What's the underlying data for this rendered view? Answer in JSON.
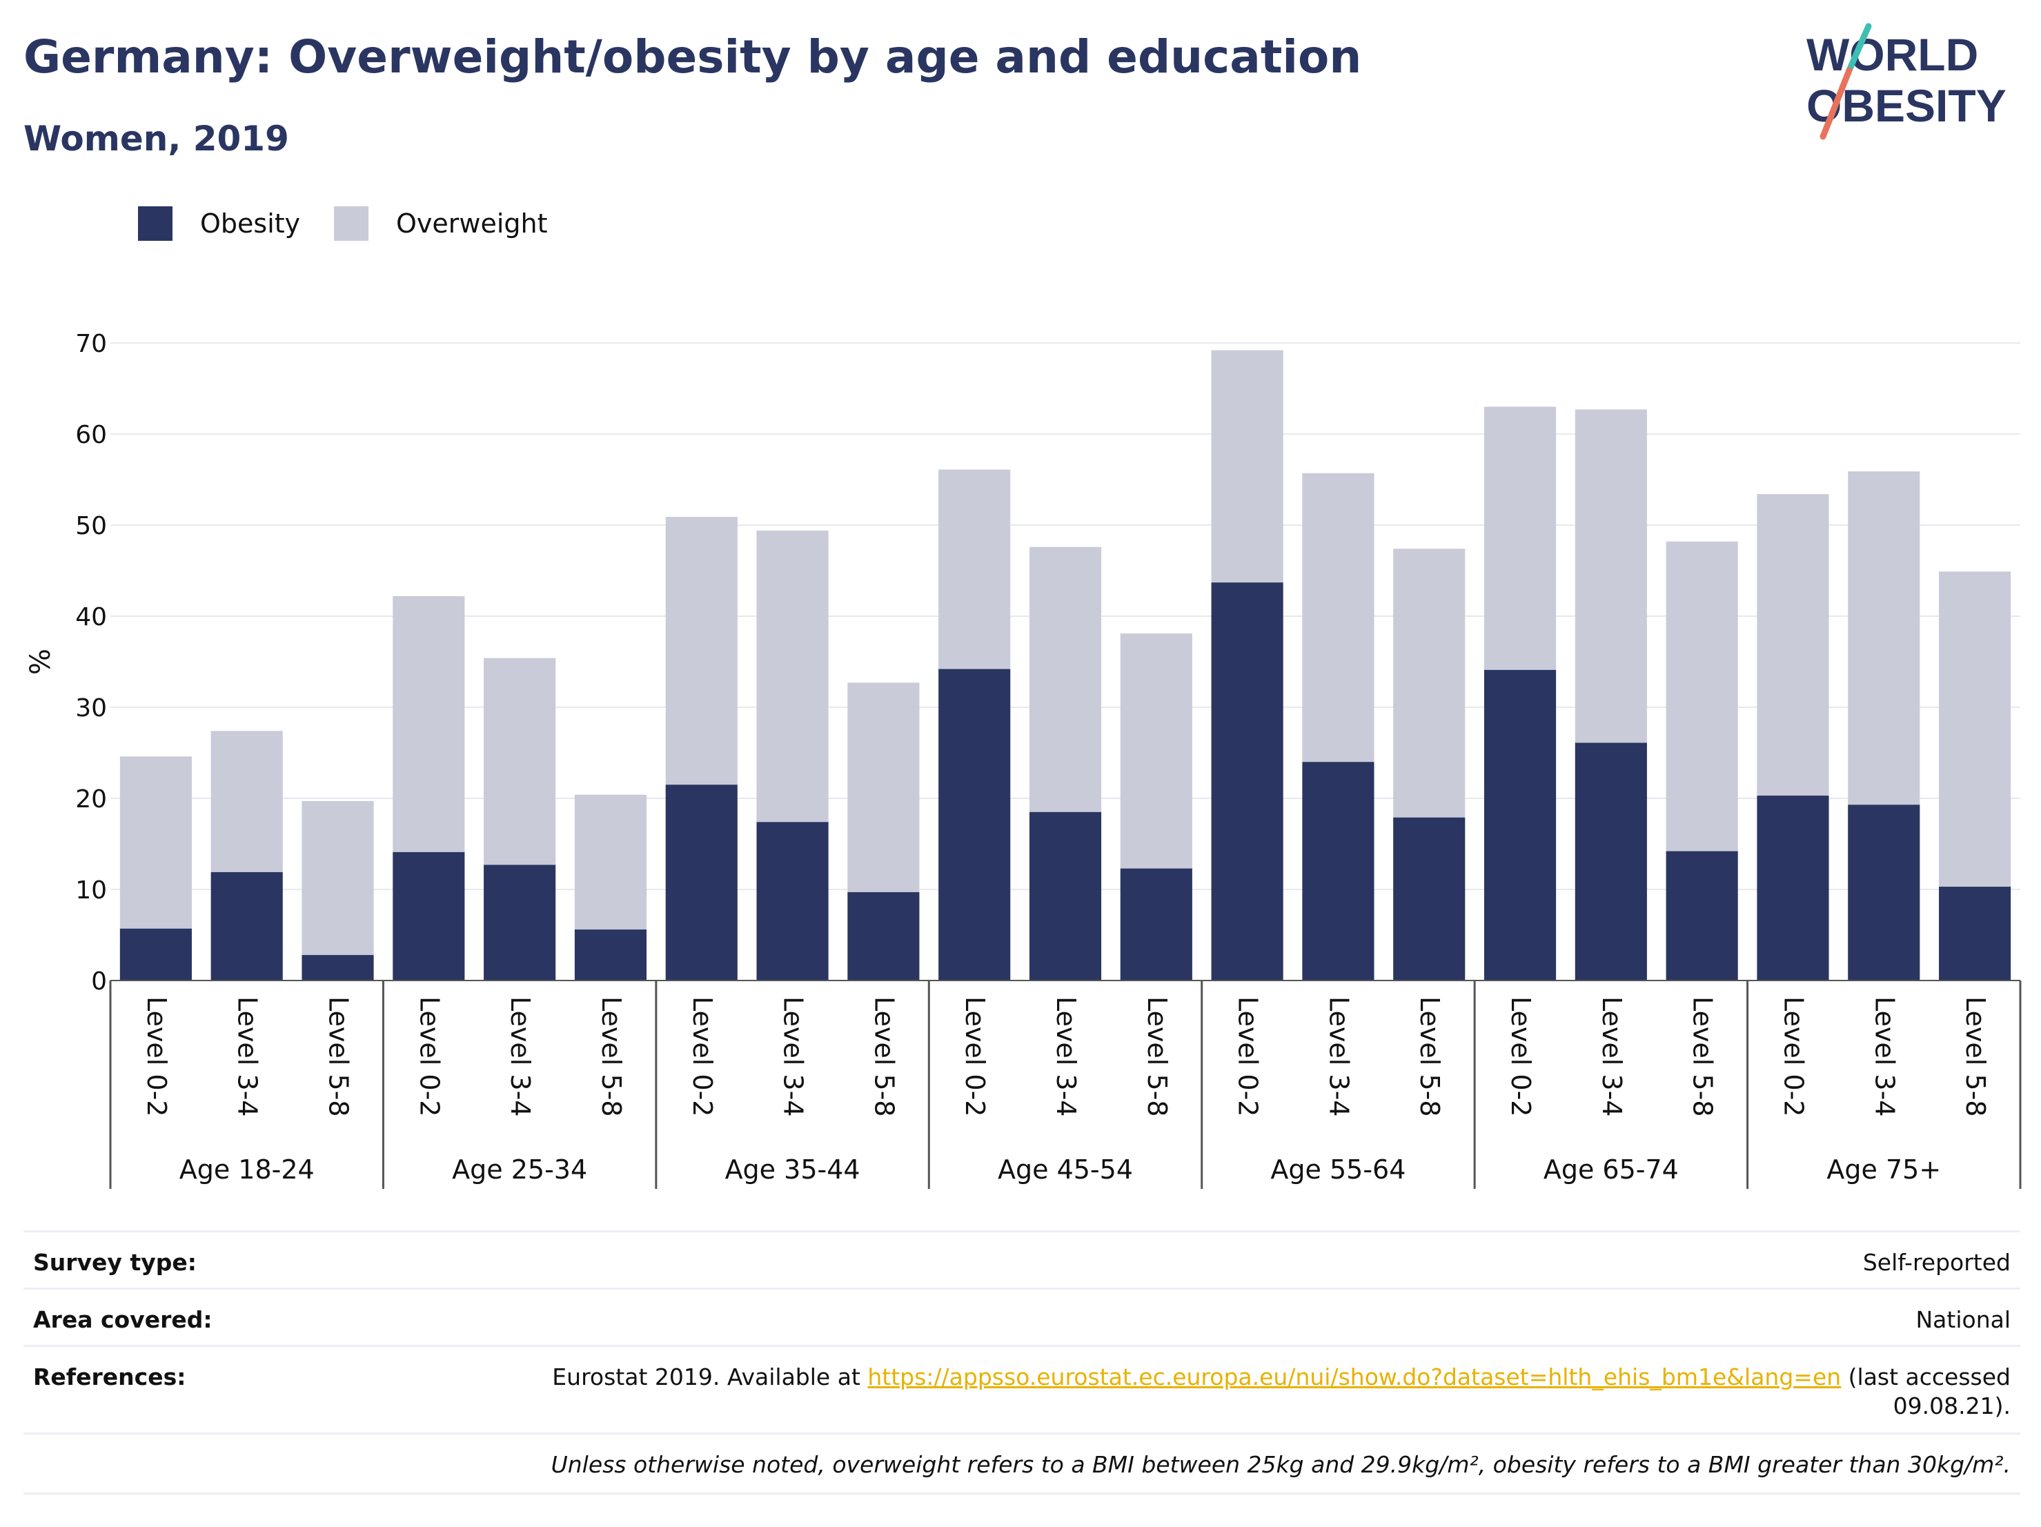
{
  "header": {
    "title": "Germany: Overweight/obesity by age and education",
    "subtitle": "Women, 2019",
    "logo_line1": "WORLD",
    "logo_line2": "OBESITY"
  },
  "colors": {
    "obesity": "#2a3661",
    "overweight": "#c9cbd8",
    "title": "#2a3661",
    "link": "#e8b100",
    "logo_teal": "#3fbfb3",
    "logo_coral": "#e8735c"
  },
  "chart_data": {
    "type": "bar",
    "stacked": true,
    "ylabel": "%",
    "ylim": [
      0,
      70
    ],
    "yticks": [
      0,
      10,
      20,
      30,
      40,
      50,
      60,
      70
    ],
    "grid": true,
    "legend_position": "top-left",
    "groups": [
      "Age 18-24",
      "Age 25-34",
      "Age 35-44",
      "Age 45-54",
      "Age 55-64",
      "Age 65-74",
      "Age 75+"
    ],
    "levels": [
      "Level 0-2",
      "Level 3-4",
      "Level 5-8"
    ],
    "series": [
      {
        "name": "Obesity",
        "values": [
          5.7,
          11.9,
          2.8,
          14.1,
          12.7,
          5.6,
          21.5,
          17.4,
          9.7,
          34.2,
          18.5,
          12.3,
          43.7,
          24.0,
          17.9,
          34.1,
          26.1,
          14.2,
          20.3,
          19.3,
          10.3
        ]
      },
      {
        "name": "Overweight",
        "values": [
          18.9,
          15.5,
          16.9,
          28.1,
          22.7,
          14.8,
          29.4,
          32.0,
          23.0,
          21.9,
          29.1,
          25.8,
          25.5,
          31.7,
          29.5,
          28.9,
          36.6,
          34.0,
          33.1,
          36.6,
          34.6
        ]
      }
    ]
  },
  "info": {
    "rows": [
      {
        "label": "Survey type:",
        "value": "Self-reported"
      },
      {
        "label": "Area covered:",
        "value": "National"
      }
    ],
    "references_label": "References:",
    "references_prefix": "Eurostat 2019. Available at ",
    "references_link": "https://appsso.eurostat.ec.europa.eu/nui/show.do?dataset=hlth_ehis_bm1e&lang=en",
    "references_suffix": " (last accessed",
    "references_date": "09.08.21).",
    "note": "Unless otherwise noted, overweight refers to a BMI between 25kg and 29.9kg/m², obesity refers to a BMI greater than 30kg/m²."
  }
}
